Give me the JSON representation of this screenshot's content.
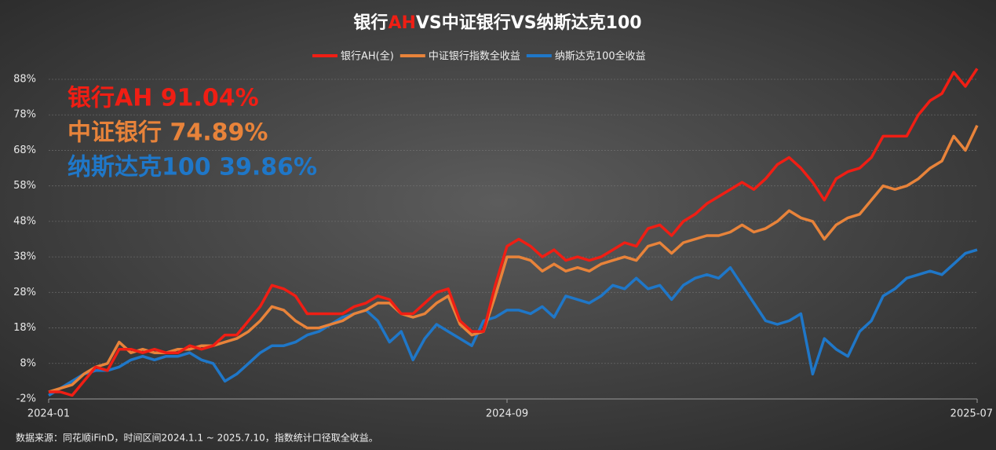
{
  "chart_data": {
    "type": "line",
    "title_segments": [
      {
        "text": "银行",
        "color": "#ffffff"
      },
      {
        "text": "AH",
        "color": "#f01e14"
      },
      {
        "text": "VS中证银行VS纳斯达克100",
        "color": "#ffffff"
      }
    ],
    "annotations": [
      {
        "text": "银行AH 91.04%",
        "color": "#f01e14"
      },
      {
        "text": "中证银行 74.89%",
        "color": "#e8833a"
      },
      {
        "text": "纳斯达克100 39.86%",
        "color": "#1f77c8"
      }
    ],
    "source": "数据来源：同花顺iFinD，时间区间2024.1.1 ~ 2025.7.10，指数统计口径取全收益。",
    "categories": [
      "2024-01",
      null,
      null,
      null,
      null,
      null,
      null,
      null,
      null,
      null,
      null,
      null,
      null,
      null,
      null,
      null,
      null,
      null,
      null,
      null,
      null,
      null,
      null,
      null,
      null,
      null,
      null,
      null,
      null,
      null,
      null,
      null,
      null,
      null,
      null,
      null,
      null,
      null,
      null,
      "2024-09",
      null,
      null,
      null,
      null,
      null,
      null,
      null,
      null,
      null,
      null,
      null,
      null,
      null,
      null,
      null,
      null,
      null,
      null,
      null,
      null,
      null,
      null,
      null,
      null,
      null,
      null,
      null,
      null,
      null,
      null,
      null,
      null,
      null,
      null,
      null,
      null,
      null,
      null,
      null,
      "2025-07"
    ],
    "series": [
      {
        "name": "银行AH(全)",
        "color": "#f01e14",
        "values": [
          0,
          0,
          -1,
          3,
          7,
          6,
          12,
          12,
          11,
          12,
          11,
          11,
          13,
          12,
          13,
          16,
          16,
          20,
          24,
          30,
          29,
          27,
          22,
          22,
          22,
          22,
          24,
          25,
          27,
          26,
          22,
          22,
          25,
          28,
          29,
          20,
          17,
          17,
          30,
          41,
          43,
          41,
          38,
          40,
          37,
          38,
          37,
          38,
          40,
          42,
          41,
          46,
          47,
          44,
          48,
          50,
          53,
          55,
          57,
          59,
          57,
          60,
          64,
          66,
          63,
          59,
          54,
          60,
          62,
          63,
          66,
          72,
          72,
          72,
          78,
          82,
          84,
          90,
          86,
          91
        ]
      },
      {
        "name": "中证银行指数全收益",
        "color": "#e8833a",
        "values": [
          0,
          1,
          2,
          5,
          7,
          8,
          14,
          11,
          12,
          11,
          11,
          12,
          12,
          13,
          13,
          14,
          15,
          17,
          20,
          24,
          23,
          20,
          18,
          18,
          19,
          20,
          22,
          23,
          25,
          25,
          22,
          21,
          22,
          25,
          27,
          19,
          16,
          17,
          27,
          38,
          38,
          37,
          34,
          36,
          34,
          35,
          34,
          36,
          37,
          38,
          37,
          41,
          42,
          39,
          42,
          43,
          44,
          44,
          45,
          47,
          45,
          46,
          48,
          51,
          49,
          48,
          43,
          47,
          49,
          50,
          54,
          58,
          57,
          58,
          60,
          63,
          65,
          72,
          68,
          75
        ]
      },
      {
        "name": "纳斯达克100全收益",
        "color": "#1f77c8",
        "values": [
          -1,
          1,
          3,
          5,
          6,
          6,
          7,
          9,
          10,
          9,
          10,
          10,
          11,
          9,
          8,
          3,
          5,
          8,
          11,
          13,
          13,
          14,
          16,
          17,
          19,
          21,
          22,
          23,
          20,
          14,
          17,
          9,
          15,
          19,
          17,
          15,
          13,
          20,
          21,
          23,
          23,
          22,
          24,
          21,
          27,
          26,
          25,
          27,
          30,
          29,
          32,
          29,
          30,
          26,
          30,
          32,
          33,
          32,
          35,
          30,
          25,
          20,
          19,
          20,
          22,
          5,
          15,
          12,
          10,
          17,
          20,
          27,
          29,
          32,
          33,
          34,
          33,
          36,
          39,
          40
        ]
      }
    ],
    "ylim": [
      -2,
      88
    ],
    "yticks": [
      {
        "value": -2,
        "label": "-2%"
      },
      {
        "value": 8,
        "label": "8%"
      },
      {
        "value": 18,
        "label": "18%"
      },
      {
        "value": 28,
        "label": "28%"
      },
      {
        "value": 38,
        "label": "38%"
      },
      {
        "value": 48,
        "label": "48%"
      },
      {
        "value": 58,
        "label": "58%"
      },
      {
        "value": 68,
        "label": "68%"
      },
      {
        "value": 78,
        "label": "78%"
      },
      {
        "value": 88,
        "label": "88%"
      }
    ],
    "grid": true
  }
}
